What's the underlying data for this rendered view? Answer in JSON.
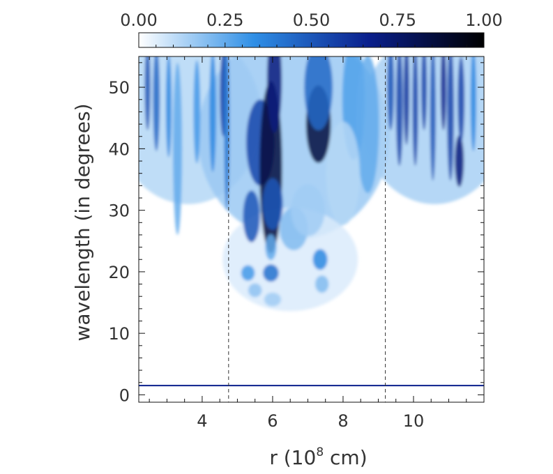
{
  "chart_data": {
    "type": "heatmap",
    "xlabel": {
      "prefix": "r (10",
      "sup": "8",
      "suffix": " cm)"
    },
    "ylabel": "wavelength (in degrees)",
    "xlim": [
      2.2,
      12.0
    ],
    "ylim": [
      -1.2,
      55
    ],
    "x_ticks": [
      {
        "value": 4,
        "label": "4"
      },
      {
        "value": 6,
        "label": "6"
      },
      {
        "value": 8,
        "label": "8"
      },
      {
        "value": 10,
        "label": "10"
      }
    ],
    "y_ticks": [
      {
        "value": 0,
        "label": "0"
      },
      {
        "value": 10,
        "label": "10"
      },
      {
        "value": 20,
        "label": "20"
      },
      {
        "value": 30,
        "label": "30"
      },
      {
        "value": 40,
        "label": "40"
      },
      {
        "value": 50,
        "label": "50"
      }
    ],
    "colorbar": {
      "range": [
        0,
        1
      ],
      "ticks": [
        {
          "value": 0,
          "label": "0.00"
        },
        {
          "value": 0.25,
          "label": "0.25"
        },
        {
          "value": 0.5,
          "label": "0.50"
        },
        {
          "value": 0.75,
          "label": "0.75"
        },
        {
          "value": 1,
          "label": "1.00"
        }
      ],
      "colors": [
        "#ffffff",
        "#2f8fe6",
        "#0a1f8c",
        "#000000"
      ]
    },
    "boundaries_x": [
      4.75,
      9.2
    ],
    "horizontal_line_y": 1.5,
    "intensity_blobs": [
      {
        "x": 2.45,
        "y": 50,
        "sx": 0.05,
        "sy": 5,
        "v": 0.5
      },
      {
        "x": 2.7,
        "y": 48,
        "sx": 0.06,
        "sy": 6,
        "v": 0.45
      },
      {
        "x": 3.05,
        "y": 47,
        "sx": 0.05,
        "sy": 6,
        "v": 0.35
      },
      {
        "x": 3.3,
        "y": 40,
        "sx": 0.08,
        "sy": 10,
        "v": 0.25
      },
      {
        "x": 3.85,
        "y": 46,
        "sx": 0.06,
        "sy": 6,
        "v": 0.3
      },
      {
        "x": 4.3,
        "y": 46,
        "sx": 0.06,
        "sy": 7,
        "v": 0.35
      },
      {
        "x": 4.6,
        "y": 49,
        "sx": 0.06,
        "sy": 5,
        "v": 0.55
      },
      {
        "x": 4.7,
        "y": 44,
        "sx": 0.05,
        "sy": 10,
        "v": 0.4
      },
      {
        "x": 5.4,
        "y": 29,
        "sx": 0.15,
        "sy": 3,
        "v": 0.5
      },
      {
        "x": 5.65,
        "y": 41,
        "sx": 0.25,
        "sy": 5,
        "v": 0.55
      },
      {
        "x": 5.95,
        "y": 37,
        "sx": 0.2,
        "sy": 10,
        "v": 0.85
      },
      {
        "x": 6.05,
        "y": 51,
        "sx": 0.13,
        "sy": 6,
        "v": 0.7
      },
      {
        "x": 6.0,
        "y": 31,
        "sx": 0.18,
        "sy": 3,
        "v": 0.5
      },
      {
        "x": 5.95,
        "y": 24,
        "sx": 0.1,
        "sy": 1.5,
        "v": 0.25
      },
      {
        "x": 5.95,
        "y": 19.8,
        "sx": 0.14,
        "sy": 1.0,
        "v": 0.42
      },
      {
        "x": 5.3,
        "y": 19.8,
        "sx": 0.12,
        "sy": 0.9,
        "v": 0.3
      },
      {
        "x": 5.5,
        "y": 17,
        "sx": 0.12,
        "sy": 0.8,
        "v": 0.18
      },
      {
        "x": 6.0,
        "y": 15.5,
        "sx": 0.15,
        "sy": 0.8,
        "v": 0.15
      },
      {
        "x": 6.6,
        "y": 27,
        "sx": 0.25,
        "sy": 2.5,
        "v": 0.2
      },
      {
        "x": 7.3,
        "y": 44,
        "sx": 0.22,
        "sy": 4.5,
        "v": 0.85
      },
      {
        "x": 7.3,
        "y": 50,
        "sx": 0.25,
        "sy": 5,
        "v": 0.45
      },
      {
        "x": 7.35,
        "y": 22,
        "sx": 0.13,
        "sy": 1.2,
        "v": 0.35
      },
      {
        "x": 7.4,
        "y": 18,
        "sx": 0.12,
        "sy": 1.0,
        "v": 0.2
      },
      {
        "x": 7.0,
        "y": 30,
        "sx": 0.3,
        "sy": 3,
        "v": 0.15
      },
      {
        "x": 8.3,
        "y": 48,
        "sx": 0.2,
        "sy": 7,
        "v": 0.28
      },
      {
        "x": 8.7,
        "y": 44,
        "sx": 0.2,
        "sy": 8,
        "v": 0.25
      },
      {
        "x": 8.0,
        "y": 36,
        "sx": 0.3,
        "sy": 6,
        "v": 0.12
      },
      {
        "x": 9.35,
        "y": 50,
        "sx": 0.06,
        "sy": 5,
        "v": 0.5
      },
      {
        "x": 9.6,
        "y": 47,
        "sx": 0.06,
        "sy": 7,
        "v": 0.55
      },
      {
        "x": 9.8,
        "y": 49,
        "sx": 0.05,
        "sy": 6,
        "v": 0.6
      },
      {
        "x": 10.05,
        "y": 47,
        "sx": 0.05,
        "sy": 7,
        "v": 0.55
      },
      {
        "x": 10.3,
        "y": 50,
        "sx": 0.05,
        "sy": 5,
        "v": 0.55
      },
      {
        "x": 10.55,
        "y": 46,
        "sx": 0.05,
        "sy": 8,
        "v": 0.5
      },
      {
        "x": 10.85,
        "y": 50,
        "sx": 0.05,
        "sy": 5,
        "v": 0.65
      },
      {
        "x": 11.05,
        "y": 46,
        "sx": 0.06,
        "sy": 8,
        "v": 0.55
      },
      {
        "x": 11.3,
        "y": 38,
        "sx": 0.08,
        "sy": 3,
        "v": 0.7
      },
      {
        "x": 11.35,
        "y": 48,
        "sx": 0.06,
        "sy": 5,
        "v": 0.55
      },
      {
        "x": 11.7,
        "y": 48,
        "sx": 0.05,
        "sy": 6,
        "v": 0.35
      }
    ]
  }
}
